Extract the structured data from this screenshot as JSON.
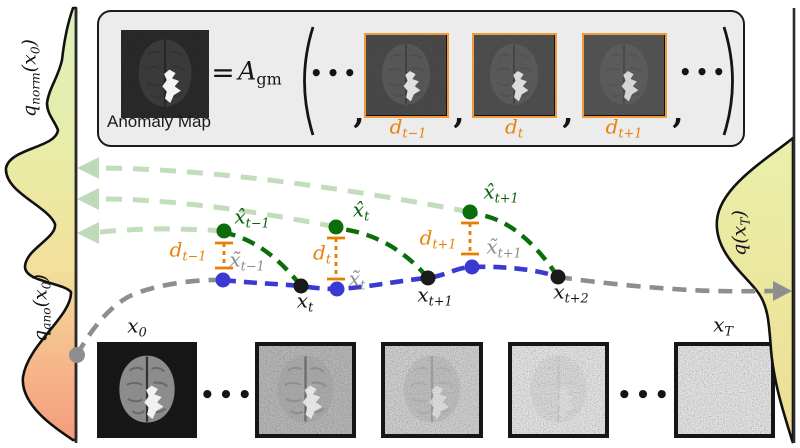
{
  "box": {
    "anomaly_map_label": "Anomaly Map",
    "equals": "=",
    "A_gm": [
      {
        "t": "A"
      },
      {
        "t": "gm",
        "sub": true,
        "rm": true
      }
    ],
    "dots_left": "•••",
    "dots_right": "•••",
    "commas": [
      ",",
      ",",
      ",",
      ","
    ],
    "d_labels": [
      [
        {
          "t": "d"
        },
        {
          "t": "t−1",
          "sub": true
        }
      ],
      [
        {
          "t": "d"
        },
        {
          "t": "t",
          "sub": true
        }
      ],
      [
        {
          "t": "d"
        },
        {
          "t": "t+1",
          "sub": true
        }
      ]
    ]
  },
  "distributions": {
    "q_norm": [
      {
        "t": "q"
      },
      {
        "t": "norm",
        "sub": true
      },
      {
        "t": "("
      },
      {
        "t": "x"
      },
      {
        "t": "0",
        "sub": true
      },
      {
        "t": ")"
      }
    ],
    "q_ano": [
      {
        "t": "q"
      },
      {
        "t": "ano",
        "sub": true
      },
      {
        "t": "("
      },
      {
        "t": "x"
      },
      {
        "t": "0",
        "sub": true
      },
      {
        "t": ")"
      }
    ],
    "q_xT": [
      {
        "t": "q"
      },
      {
        "t": "("
      },
      {
        "t": "x"
      },
      {
        "t": "T",
        "sub": true
      },
      {
        "t": ")"
      }
    ]
  },
  "trajectory": {
    "hat_labels": [
      [
        {
          "t": "x̂"
        },
        {
          "t": "t−1",
          "sub": true
        }
      ],
      [
        {
          "t": "x̂"
        },
        {
          "t": "t",
          "sub": true
        }
      ],
      [
        {
          "t": "x̂"
        },
        {
          "t": "t+1",
          "sub": true
        }
      ]
    ],
    "tilde_labels": [
      [
        {
          "t": "x̃"
        },
        {
          "t": "t−1",
          "sub": true
        }
      ],
      [
        {
          "t": "x̃"
        },
        {
          "t": "t",
          "sub": true
        }
      ],
      [
        {
          "t": "x̃"
        },
        {
          "t": "t+1",
          "sub": true
        }
      ]
    ],
    "d_labels": [
      [
        {
          "t": "d"
        },
        {
          "t": "t−1",
          "sub": true
        }
      ],
      [
        {
          "t": "d"
        },
        {
          "t": "t",
          "sub": true
        }
      ],
      [
        {
          "t": "d"
        },
        {
          "t": "t+1",
          "sub": true
        }
      ]
    ],
    "x_labels": [
      [
        {
          "t": "x"
        },
        {
          "t": "t",
          "sub": true
        }
      ],
      [
        {
          "t": "x"
        },
        {
          "t": "t+1",
          "sub": true
        }
      ],
      [
        {
          "t": "x"
        },
        {
          "t": "t+2",
          "sub": true
        }
      ]
    ]
  },
  "bottom_row": {
    "x0_label": [
      {
        "t": "x"
      },
      {
        "t": "0",
        "sub": true
      }
    ],
    "xT_label": [
      {
        "t": "x"
      },
      {
        "t": "T",
        "sub": true
      }
    ],
    "dots_left": "•••",
    "dots_right": "•••"
  },
  "colors": {
    "accent_orange": "#e8820a",
    "dark_green": "#0b6e0b",
    "blue": "#3a3ad2",
    "gray": "#8e8e8e",
    "faded_green": "#b9d6b1",
    "box_background": "#ececec"
  }
}
